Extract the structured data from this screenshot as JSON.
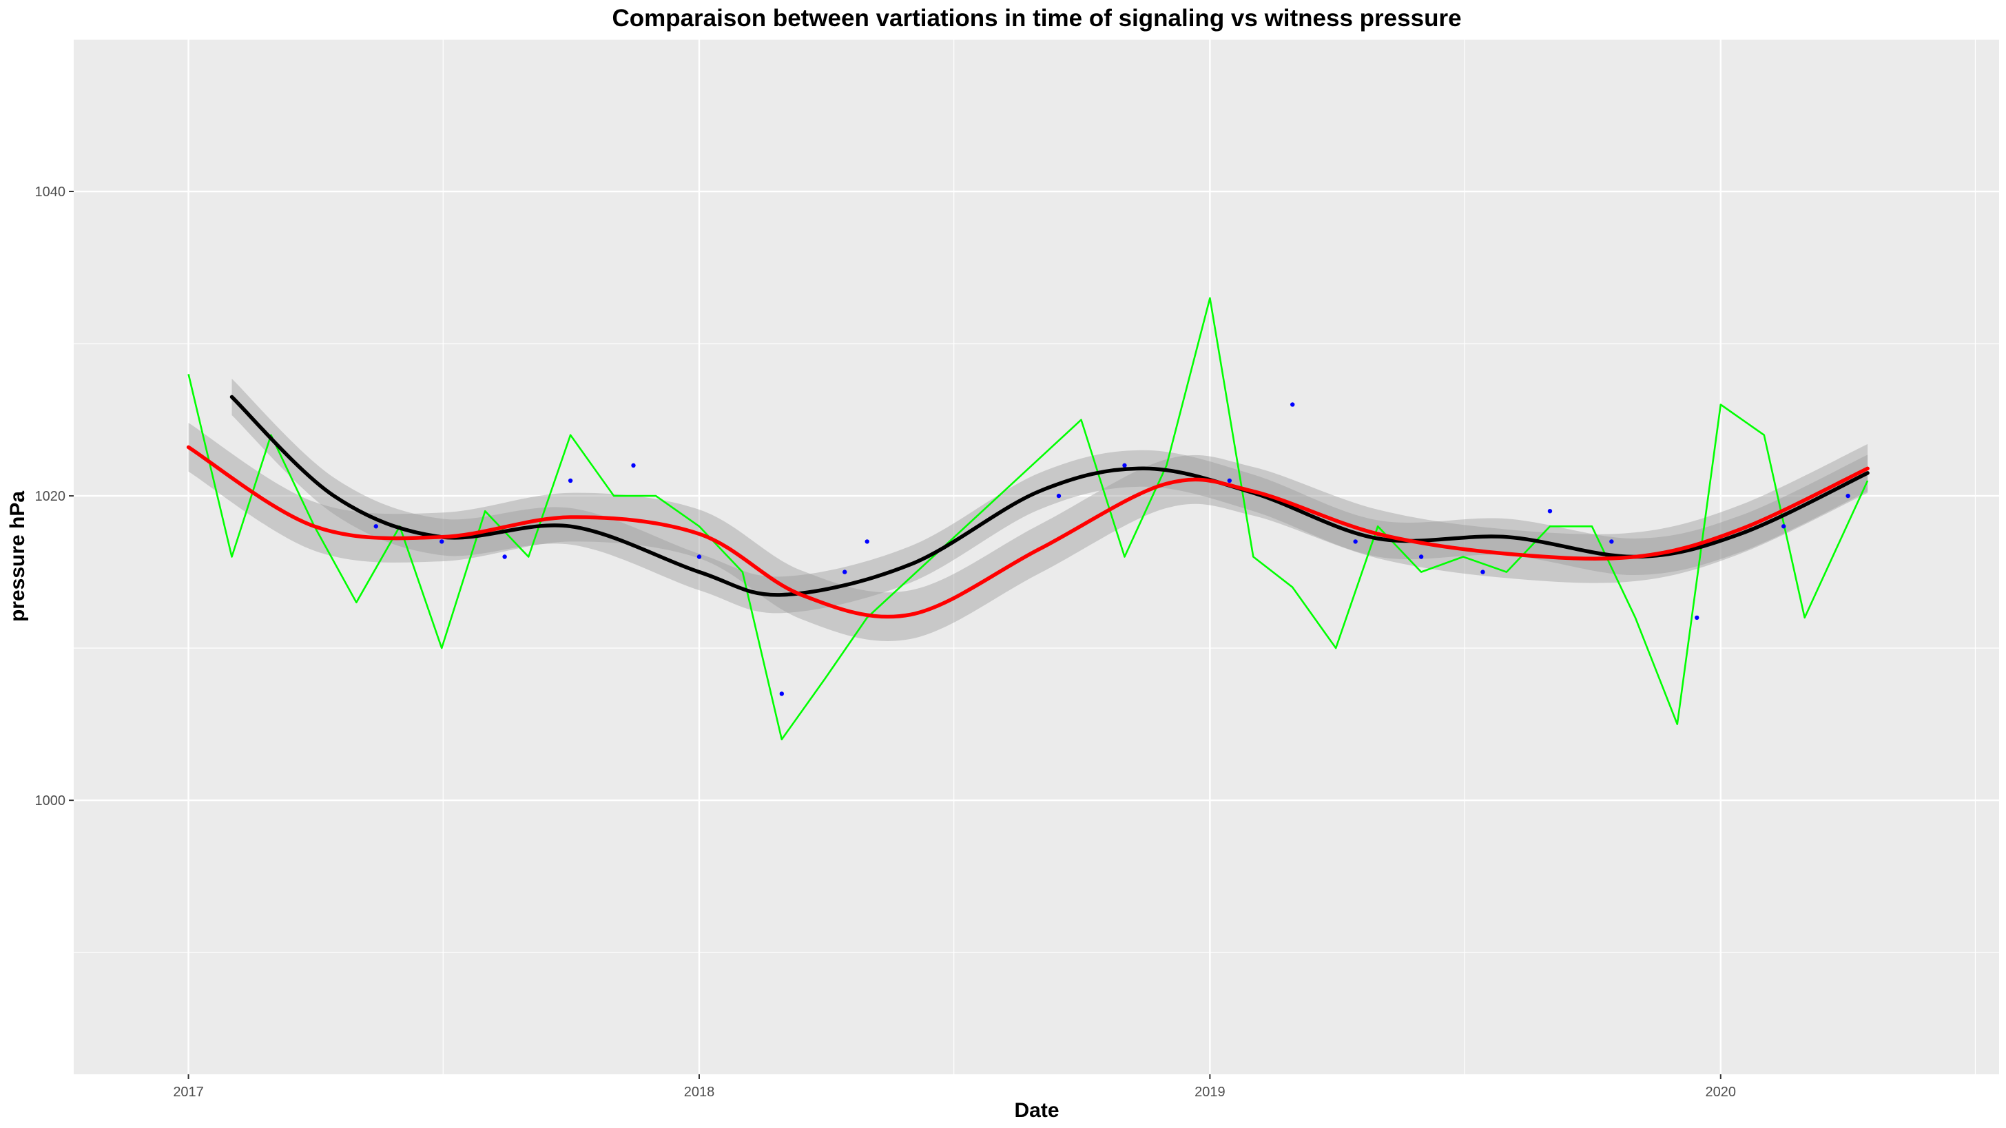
{
  "chart_data": {
    "type": "line",
    "title": "Comparaison between vartiations in time of signaling vs witness pressure",
    "xlabel": "Date",
    "ylabel": "pressure hPa",
    "x_ticks": [
      "2017",
      "2018",
      "2019",
      "2020"
    ],
    "y_ticks": [
      "1000",
      "1020",
      "1040"
    ],
    "xlim": [
      "2016-10-11",
      "2020-07-18"
    ],
    "ylim": [
      982,
      1050
    ],
    "grid": true,
    "legend": "none",
    "colors": {
      "panel": "#ebebeb",
      "grid": "#ffffff",
      "witness_line": "#00ff00",
      "signaling_points": "#0000ff",
      "smooth_signaling": "#000000",
      "smooth_witness": "#ff0000",
      "ribbon": "#999999"
    },
    "series": [
      {
        "kind": "line",
        "role": "witness",
        "x": [
          "2017-01-01",
          "2017-02-01",
          "2017-03-01",
          "2017-04-01",
          "2017-05-01",
          "2017-06-01",
          "2017-07-01",
          "2017-08-01",
          "2017-09-01",
          "2017-10-01",
          "2017-11-01",
          "2017-12-01",
          "2018-01-01",
          "2018-02-01",
          "2018-03-01",
          "2018-04-01",
          "2018-05-01",
          "2018-10-01",
          "2018-11-01",
          "2018-12-01",
          "2019-01-01",
          "2019-02-01",
          "2019-03-01",
          "2019-04-01",
          "2019-05-01",
          "2019-06-01",
          "2019-07-01",
          "2019-08-01",
          "2019-09-01",
          "2019-10-01",
          "2019-11-01",
          "2019-12-01",
          "2020-01-01",
          "2020-02-01",
          "2020-03-01",
          "2020-04-15"
        ],
        "values": [
          1028,
          1016,
          1024,
          1018,
          1013,
          1018,
          1010,
          1019,
          1016,
          1024,
          1020,
          1020,
          1018,
          1015,
          1004,
          1008,
          1012,
          1025,
          1016,
          1022,
          1033,
          1016,
          1014,
          1010,
          1018,
          1015,
          1016,
          1015,
          1018,
          1018,
          1012,
          1005,
          1026,
          1024,
          1012,
          1021
        ]
      },
      {
        "kind": "points",
        "role": "signaling",
        "x": [
          "2017-05-15",
          "2017-07-01",
          "2017-08-15",
          "2017-10-01",
          "2017-11-15",
          "2018-01-01",
          "2018-03-01",
          "2018-04-15",
          "2018-05-01",
          "2018-09-15",
          "2018-11-01",
          "2019-01-15",
          "2019-03-01",
          "2019-04-15",
          "2019-06-01",
          "2019-07-15",
          "2019-09-01",
          "2019-10-15",
          "2019-12-15",
          "2020-02-15",
          "2020-04-01"
        ],
        "values": [
          1018,
          1017,
          1016,
          1021,
          1022,
          1016,
          1007,
          1015,
          1017,
          1020,
          1022,
          1021,
          1026,
          1017,
          1016,
          1015,
          1019,
          1017,
          1012,
          1018,
          1020
        ]
      },
      {
        "kind": "smooth",
        "role": "signaling-smooth",
        "x": [
          "2017-02-01",
          "2017-04-15",
          "2017-07-01",
          "2017-10-01",
          "2018-01-01",
          "2018-03-01",
          "2018-06-01",
          "2018-09-01",
          "2018-11-15",
          "2019-02-01",
          "2019-05-01",
          "2019-08-01",
          "2019-11-01",
          "2020-01-15",
          "2020-04-15"
        ],
        "values": [
          1026.5,
          1020,
          1017.3,
          1018,
          1015,
          1013.5,
          1015.5,
          1020.3,
          1021.8,
          1020.2,
          1017.2,
          1017.3,
          1016,
          1017.5,
          1021.5
        ],
        "band": 1.2
      },
      {
        "kind": "smooth",
        "role": "witness-smooth",
        "x": [
          "2017-01-01",
          "2017-04-01",
          "2017-07-01",
          "2017-10-01",
          "2018-01-01",
          "2018-03-15",
          "2018-06-01",
          "2018-09-01",
          "2018-12-01",
          "2019-02-01",
          "2019-05-01",
          "2019-08-01",
          "2019-11-01",
          "2020-01-15",
          "2020-04-15"
        ],
        "values": [
          1023.2,
          1018,
          1017.3,
          1018.6,
          1017.5,
          1013.5,
          1012.2,
          1016.5,
          1020.8,
          1020.3,
          1017.5,
          1016.2,
          1016,
          1017.8,
          1021.8
        ],
        "band": 1.6
      }
    ]
  }
}
